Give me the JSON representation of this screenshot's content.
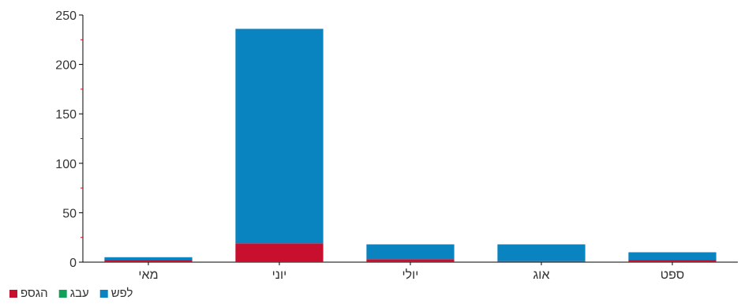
{
  "chart_data": {
    "type": "bar",
    "stacked": true,
    "categories": [
      "מאי",
      "יוני",
      "יולי",
      "אוג",
      "ספט"
    ],
    "series": [
      {
        "name": "פסגה",
        "color": "#c8102e",
        "values": [
          2,
          19,
          3,
          1,
          2
        ]
      },
      {
        "name": "גבע",
        "color": "#10a05a",
        "values": [
          0,
          0,
          0,
          0,
          0
        ]
      },
      {
        "name": "שפל",
        "color": "#0a84c1",
        "values": [
          3,
          217,
          15,
          17,
          8
        ]
      }
    ],
    "title": "",
    "xlabel": "",
    "ylabel": "",
    "ylim": [
      0,
      250
    ],
    "yticks": [
      0,
      50,
      100,
      150,
      200,
      250
    ],
    "grid": false,
    "legend": "bottom-left"
  }
}
